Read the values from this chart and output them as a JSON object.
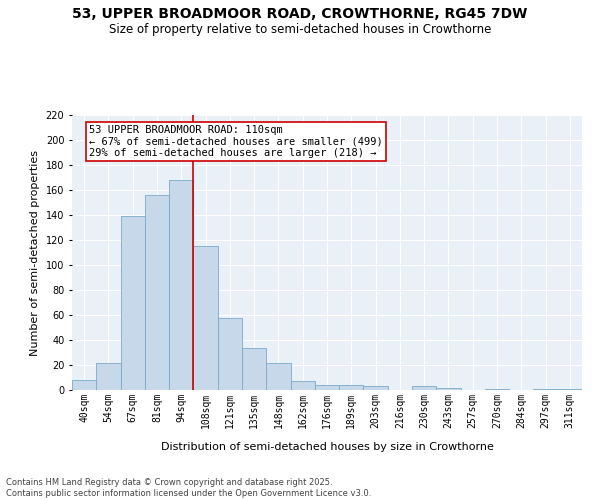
{
  "title_line1": "53, UPPER BROADMOOR ROAD, CROWTHORNE, RG45 7DW",
  "title_line2": "Size of property relative to semi-detached houses in Crowthorne",
  "xlabel": "Distribution of semi-detached houses by size in Crowthorne",
  "ylabel": "Number of semi-detached properties",
  "categories": [
    "40sqm",
    "54sqm",
    "67sqm",
    "81sqm",
    "94sqm",
    "108sqm",
    "121sqm",
    "135sqm",
    "148sqm",
    "162sqm",
    "176sqm",
    "189sqm",
    "203sqm",
    "216sqm",
    "230sqm",
    "243sqm",
    "257sqm",
    "270sqm",
    "284sqm",
    "297sqm",
    "311sqm"
  ],
  "values": [
    8,
    22,
    139,
    156,
    168,
    115,
    58,
    34,
    22,
    7,
    4,
    4,
    3,
    0,
    3,
    2,
    0,
    1,
    0,
    1,
    1
  ],
  "bar_color": "#c8d8eb",
  "bar_edge_color": "#7aaac8",
  "highlight_label": "53 UPPER BROADMOOR ROAD: 110sqm",
  "highlight_smaller": "← 67% of semi-detached houses are smaller (499)",
  "highlight_larger": "29% of semi-detached houses are larger (218) →",
  "annotation_box_color": "#cc0000",
  "vline_color": "#cc0000",
  "vline_x_index": 4.5,
  "ylim": [
    0,
    220
  ],
  "yticks": [
    0,
    20,
    40,
    60,
    80,
    100,
    120,
    140,
    160,
    180,
    200,
    220
  ],
  "background_color": "#eaf0f8",
  "grid_color": "#ffffff",
  "footer_line1": "Contains HM Land Registry data © Crown copyright and database right 2025.",
  "footer_line2": "Contains public sector information licensed under the Open Government Licence v3.0.",
  "title_fontsize": 10,
  "subtitle_fontsize": 8.5,
  "axis_label_fontsize": 8,
  "tick_fontsize": 7,
  "annotation_fontsize": 7.5,
  "footer_fontsize": 6
}
